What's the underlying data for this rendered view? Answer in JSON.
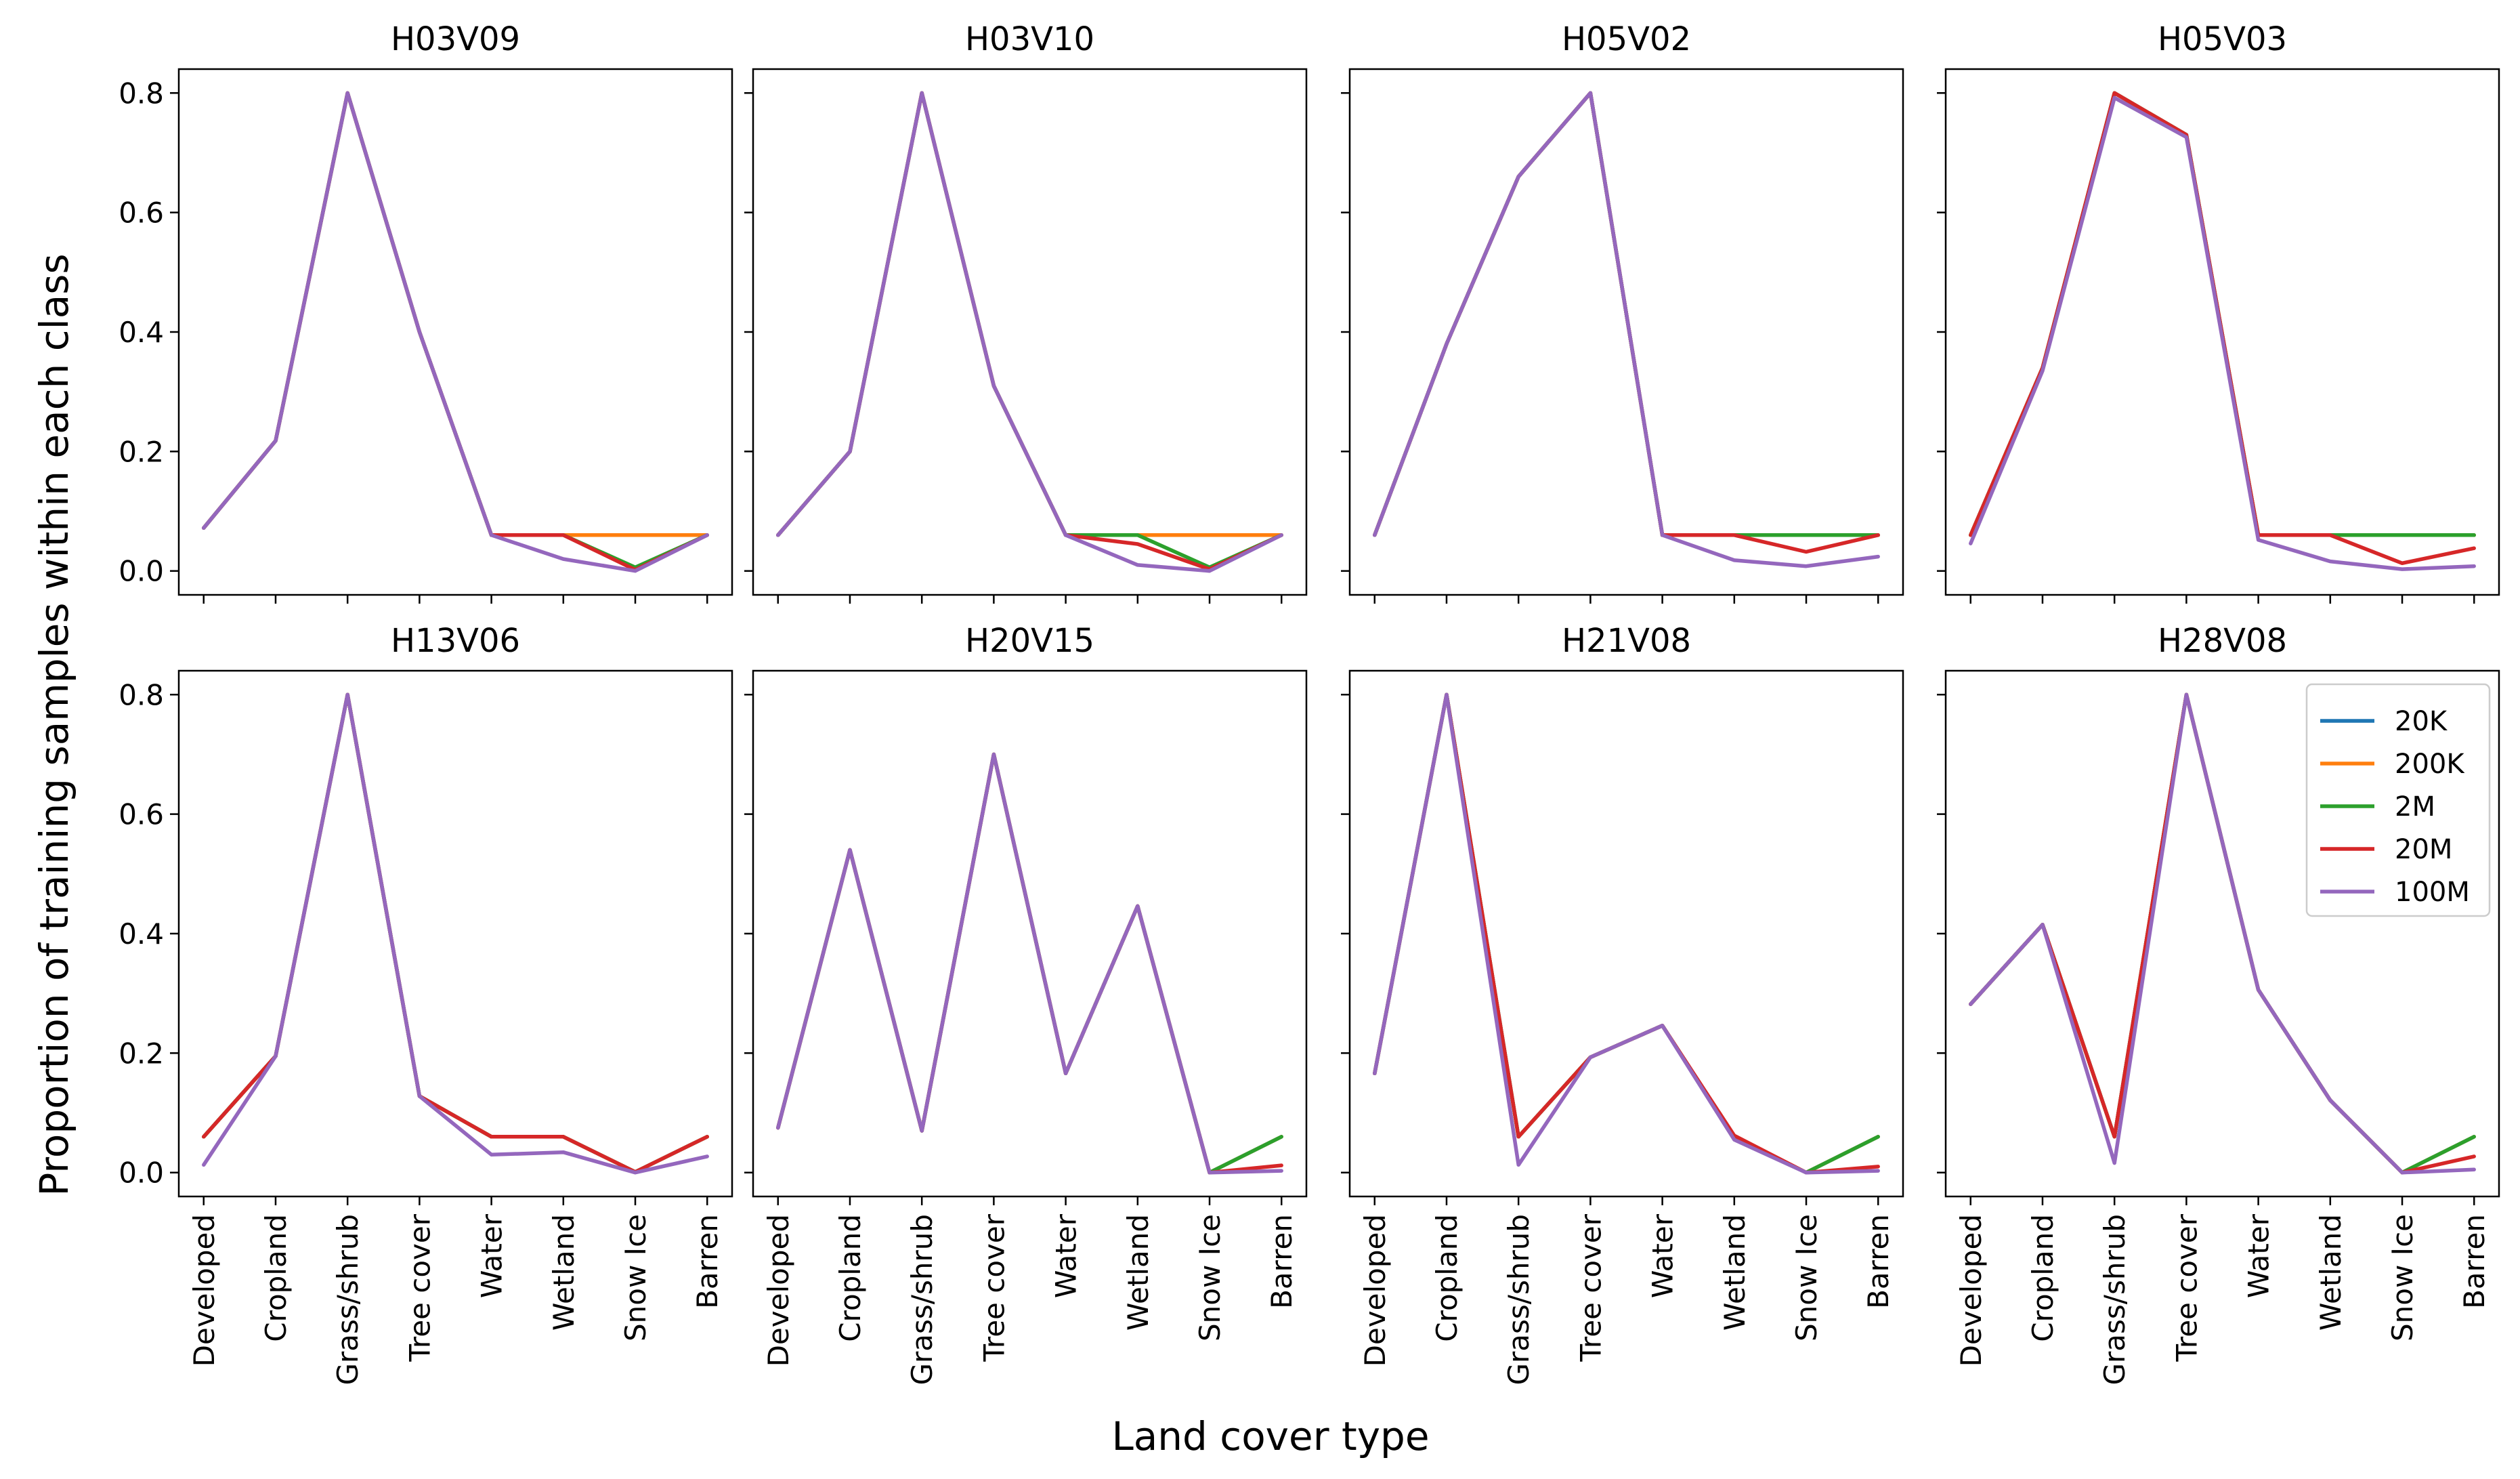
{
  "figure": {
    "ylabel": "Proportion of training samples within each class",
    "xlabel": "Land cover type"
  },
  "colors": {
    "20K": "#1f77b4",
    "200K": "#ff7f0e",
    "2M": "#2ca02c",
    "20M": "#d62728",
    "100M": "#9467bd",
    "axis": "#000000"
  },
  "chart_data": [
    {
      "type": "line",
      "title": "H03V09",
      "categories": [
        "Developed",
        "Cropland",
        "Grass/shrub",
        "Tree cover",
        "Water",
        "Wetland",
        "Snow Ice",
        "Barren"
      ],
      "ylim": [
        -0.04,
        0.84
      ],
      "yticks": [
        "0.0",
        "0.2",
        "0.4",
        "0.6",
        "0.8"
      ],
      "series": [
        {
          "name": "20K",
          "values": [
            0.072,
            0.218,
            0.8,
            0.4,
            0.06,
            0.06,
            0.06,
            0.06
          ]
        },
        {
          "name": "200K",
          "values": [
            0.072,
            0.218,
            0.8,
            0.4,
            0.06,
            0.06,
            0.06,
            0.06
          ]
        },
        {
          "name": "2M",
          "values": [
            0.072,
            0.218,
            0.8,
            0.4,
            0.06,
            0.06,
            0.006,
            0.06
          ]
        },
        {
          "name": "20M",
          "values": [
            0.072,
            0.218,
            0.8,
            0.4,
            0.06,
            0.06,
            0.002,
            0.06
          ]
        },
        {
          "name": "100M",
          "values": [
            0.072,
            0.218,
            0.8,
            0.4,
            0.06,
            0.02,
            0.0,
            0.06
          ]
        }
      ]
    },
    {
      "type": "line",
      "title": "H03V10",
      "categories": [
        "Developed",
        "Cropland",
        "Grass/shrub",
        "Tree cover",
        "Water",
        "Wetland",
        "Snow Ice",
        "Barren"
      ],
      "ylim": [
        -0.04,
        0.84
      ],
      "yticks": [
        "0.0",
        "0.2",
        "0.4",
        "0.6",
        "0.8"
      ],
      "series": [
        {
          "name": "20K",
          "values": [
            0.06,
            0.2,
            0.8,
            0.31,
            0.06,
            0.06,
            0.06,
            0.06
          ]
        },
        {
          "name": "200K",
          "values": [
            0.06,
            0.2,
            0.8,
            0.31,
            0.06,
            0.06,
            0.06,
            0.06
          ]
        },
        {
          "name": "2M",
          "values": [
            0.06,
            0.2,
            0.8,
            0.31,
            0.06,
            0.06,
            0.006,
            0.06
          ]
        },
        {
          "name": "20M",
          "values": [
            0.06,
            0.2,
            0.8,
            0.31,
            0.06,
            0.045,
            0.003,
            0.06
          ]
        },
        {
          "name": "100M",
          "values": [
            0.06,
            0.2,
            0.8,
            0.31,
            0.06,
            0.01,
            0.0,
            0.06
          ]
        }
      ]
    },
    {
      "type": "line",
      "title": "H05V02",
      "categories": [
        "Developed",
        "Cropland",
        "Grass/shrub",
        "Tree cover",
        "Water",
        "Wetland",
        "Snow Ice",
        "Barren"
      ],
      "ylim": [
        -0.04,
        0.84
      ],
      "yticks": [
        "0.0",
        "0.2",
        "0.4",
        "0.6",
        "0.8"
      ],
      "series": [
        {
          "name": "20K",
          "values": [
            0.06,
            0.38,
            0.66,
            0.8,
            0.06,
            0.06,
            0.06,
            0.06
          ]
        },
        {
          "name": "200K",
          "values": [
            0.06,
            0.38,
            0.66,
            0.8,
            0.06,
            0.06,
            0.06,
            0.06
          ]
        },
        {
          "name": "2M",
          "values": [
            0.06,
            0.38,
            0.66,
            0.8,
            0.06,
            0.06,
            0.06,
            0.06
          ]
        },
        {
          "name": "20M",
          "values": [
            0.06,
            0.38,
            0.66,
            0.8,
            0.06,
            0.06,
            0.032,
            0.06
          ]
        },
        {
          "name": "100M",
          "values": [
            0.06,
            0.38,
            0.66,
            0.8,
            0.06,
            0.018,
            0.008,
            0.024
          ]
        }
      ]
    },
    {
      "type": "line",
      "title": "H05V03",
      "categories": [
        "Developed",
        "Cropland",
        "Grass/shrub",
        "Tree cover",
        "Water",
        "Wetland",
        "Snow Ice",
        "Barren"
      ],
      "ylim": [
        -0.04,
        0.84
      ],
      "yticks": [
        "0.0",
        "0.2",
        "0.4",
        "0.6",
        "0.8"
      ],
      "series": [
        {
          "name": "20K",
          "values": [
            0.06,
            0.34,
            0.8,
            0.73,
            0.06,
            0.06,
            0.06,
            0.06
          ]
        },
        {
          "name": "200K",
          "values": [
            0.06,
            0.34,
            0.8,
            0.73,
            0.06,
            0.06,
            0.06,
            0.06
          ]
        },
        {
          "name": "2M",
          "values": [
            0.06,
            0.34,
            0.8,
            0.73,
            0.06,
            0.06,
            0.06,
            0.06
          ]
        },
        {
          "name": "20M",
          "values": [
            0.06,
            0.34,
            0.8,
            0.73,
            0.06,
            0.06,
            0.013,
            0.038
          ]
        },
        {
          "name": "100M",
          "values": [
            0.046,
            0.335,
            0.792,
            0.726,
            0.052,
            0.016,
            0.003,
            0.008
          ]
        }
      ]
    },
    {
      "type": "line",
      "title": "H13V06",
      "categories": [
        "Developed",
        "Cropland",
        "Grass/shrub",
        "Tree cover",
        "Water",
        "Wetland",
        "Snow Ice",
        "Barren"
      ],
      "ylim": [
        -0.04,
        0.84
      ],
      "yticks": [
        "0.0",
        "0.2",
        "0.4",
        "0.6",
        "0.8"
      ],
      "series": [
        {
          "name": "20K",
          "values": [
            0.06,
            0.195,
            0.8,
            0.128,
            0.06,
            0.06,
            0.001,
            0.06
          ]
        },
        {
          "name": "200K",
          "values": [
            0.06,
            0.195,
            0.8,
            0.128,
            0.06,
            0.06,
            0.001,
            0.06
          ]
        },
        {
          "name": "2M",
          "values": [
            0.06,
            0.195,
            0.8,
            0.128,
            0.06,
            0.06,
            0.001,
            0.06
          ]
        },
        {
          "name": "20M",
          "values": [
            0.06,
            0.195,
            0.8,
            0.128,
            0.06,
            0.06,
            0.001,
            0.06
          ]
        },
        {
          "name": "100M",
          "values": [
            0.013,
            0.195,
            0.8,
            0.128,
            0.03,
            0.034,
            0.0,
            0.027
          ]
        }
      ]
    },
    {
      "type": "line",
      "title": "H20V15",
      "categories": [
        "Developed",
        "Cropland",
        "Grass/shrub",
        "Tree cover",
        "Water",
        "Wetland",
        "Snow Ice",
        "Barren"
      ],
      "ylim": [
        -0.04,
        0.84
      ],
      "yticks": [
        "0.0",
        "0.2",
        "0.4",
        "0.6",
        "0.8"
      ],
      "series": [
        {
          "name": "20K",
          "values": [
            0.075,
            0.54,
            0.07,
            0.7,
            0.166,
            0.446,
            0.0,
            0.06
          ]
        },
        {
          "name": "200K",
          "values": [
            0.075,
            0.54,
            0.07,
            0.7,
            0.166,
            0.446,
            0.0,
            0.06
          ]
        },
        {
          "name": "2M",
          "values": [
            0.075,
            0.54,
            0.07,
            0.7,
            0.166,
            0.446,
            0.0,
            0.06
          ]
        },
        {
          "name": "20M",
          "values": [
            0.075,
            0.54,
            0.07,
            0.7,
            0.166,
            0.446,
            0.0,
            0.012
          ]
        },
        {
          "name": "100M",
          "values": [
            0.075,
            0.54,
            0.07,
            0.7,
            0.166,
            0.446,
            0.0,
            0.003
          ]
        }
      ]
    },
    {
      "type": "line",
      "title": "H21V08",
      "categories": [
        "Developed",
        "Cropland",
        "Grass/shrub",
        "Tree cover",
        "Water",
        "Wetland",
        "Snow Ice",
        "Barren"
      ],
      "ylim": [
        -0.04,
        0.84
      ],
      "yticks": [
        "0.0",
        "0.2",
        "0.4",
        "0.6",
        "0.8"
      ],
      "series": [
        {
          "name": "20K",
          "values": [
            0.166,
            0.8,
            0.06,
            0.193,
            0.246,
            0.06,
            0.0,
            0.06
          ]
        },
        {
          "name": "200K",
          "values": [
            0.166,
            0.8,
            0.06,
            0.193,
            0.246,
            0.06,
            0.0,
            0.06
          ]
        },
        {
          "name": "2M",
          "values": [
            0.166,
            0.8,
            0.06,
            0.193,
            0.246,
            0.06,
            0.0,
            0.06
          ]
        },
        {
          "name": "20M",
          "values": [
            0.166,
            0.8,
            0.06,
            0.193,
            0.246,
            0.062,
            0.0,
            0.01
          ]
        },
        {
          "name": "100M",
          "values": [
            0.166,
            0.8,
            0.013,
            0.193,
            0.246,
            0.055,
            0.0,
            0.003
          ]
        }
      ]
    },
    {
      "type": "line",
      "title": "H28V08",
      "categories": [
        "Developed",
        "Cropland",
        "Grass/shrub",
        "Tree cover",
        "Water",
        "Wetland",
        "Snow Ice",
        "Barren"
      ],
      "ylim": [
        -0.04,
        0.84
      ],
      "yticks": [
        "0.0",
        "0.2",
        "0.4",
        "0.6",
        "0.8"
      ],
      "legend": {
        "position": "upper-right",
        "entries": [
          "20K",
          "200K",
          "2M",
          "20M",
          "100M"
        ]
      },
      "series": [
        {
          "name": "20K",
          "values": [
            0.282,
            0.415,
            0.06,
            0.8,
            0.306,
            0.121,
            0.0,
            0.06
          ]
        },
        {
          "name": "200K",
          "values": [
            0.282,
            0.415,
            0.06,
            0.8,
            0.306,
            0.121,
            0.0,
            0.06
          ]
        },
        {
          "name": "2M",
          "values": [
            0.282,
            0.415,
            0.06,
            0.8,
            0.306,
            0.121,
            0.0,
            0.06
          ]
        },
        {
          "name": "20M",
          "values": [
            0.282,
            0.415,
            0.06,
            0.8,
            0.306,
            0.121,
            0.0,
            0.027
          ]
        },
        {
          "name": "100M",
          "values": [
            0.282,
            0.415,
            0.016,
            0.8,
            0.306,
            0.121,
            0.0,
            0.005
          ]
        }
      ]
    }
  ]
}
